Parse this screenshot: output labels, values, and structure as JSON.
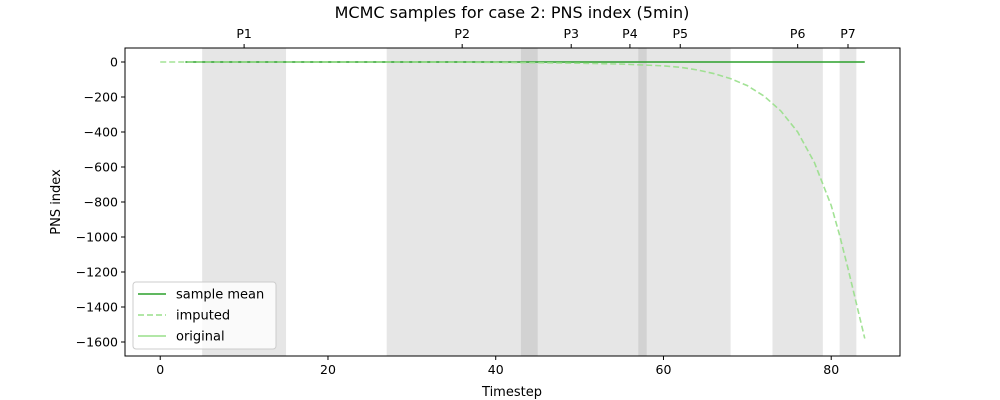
{
  "chart_data": {
    "type": "line",
    "title": "MCMC samples for case 2: PNS index (5min)",
    "xlabel": "Timestep",
    "ylabel": "PNS index",
    "xlim": [
      -4.2,
      88.2
    ],
    "ylim": [
      -1680,
      80
    ],
    "xticks": [
      0,
      20,
      40,
      60,
      80
    ],
    "yticks": [
      0,
      -200,
      -400,
      -600,
      -800,
      -1000,
      -1200,
      -1400,
      -1600
    ],
    "periods": [
      {
        "label": "P1",
        "start": 5,
        "end": 15,
        "label_x": 10
      },
      {
        "label": "P2",
        "start": 27,
        "end": 45,
        "label_x": 36
      },
      {
        "label": "P3",
        "start": 43,
        "end": 55,
        "label_x": 49
      },
      {
        "label": "P4",
        "start": 55,
        "end": 58,
        "label_x": 56
      },
      {
        "label": "P5",
        "start": 57,
        "end": 68,
        "label_x": 62
      },
      {
        "label": "P6",
        "start": 73,
        "end": 79,
        "label_x": 76
      },
      {
        "label": "P7",
        "start": 81,
        "end": 83,
        "label_x": 82
      }
    ],
    "series": [
      {
        "name": "sample mean",
        "style": "solid",
        "color": "#2ca02c",
        "x": [
          3,
          84
        ],
        "y": [
          0,
          0
        ]
      },
      {
        "name": "imputed",
        "style": "dashed",
        "color": "#98df8a",
        "x": [
          0,
          10,
          20,
          30,
          40,
          45,
          50,
          55,
          60,
          62,
          64,
          66,
          68,
          70,
          72,
          74,
          76,
          78,
          80,
          81,
          82,
          83,
          84
        ],
        "y": [
          0,
          0,
          0,
          0,
          -2,
          -4,
          -7,
          -12,
          -22,
          -30,
          -45,
          -66,
          -95,
          -135,
          -195,
          -280,
          -400,
          -575,
          -820,
          -990,
          -1180,
          -1380,
          -1580
        ]
      },
      {
        "name": "original",
        "style": "solid",
        "color": "#98df8a",
        "x": [],
        "y": []
      }
    ],
    "legend": {
      "position": "lower-left"
    },
    "grid": false
  }
}
